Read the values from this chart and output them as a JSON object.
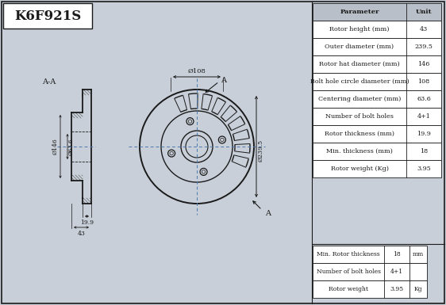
{
  "title": "K6F921S",
  "bg_color": "#c8cfd8",
  "line_color": "#1a1a1a",
  "params": [
    [
      "Parameter",
      "Unit"
    ],
    [
      "Rotor height (mm)",
      "43"
    ],
    [
      "Outer diameter (mm)",
      "239.5"
    ],
    [
      "Rotor hat diameter (mm)",
      "146"
    ],
    [
      "Bolt hole circle diameter (mm)",
      "108"
    ],
    [
      "Centering diameter (mm)",
      "63.6"
    ],
    [
      "Number of bolt holes",
      "4+1"
    ],
    [
      "Rotor thickness (mm)",
      "19.9"
    ],
    [
      "Min. thickness (mm)",
      "18"
    ],
    [
      "Rotor weight (Kg)",
      "3.95"
    ]
  ],
  "bottom_table": [
    [
      "Min. Rotor thickness",
      "18",
      "mm"
    ],
    [
      "Number of bolt holes",
      "4+1",
      ""
    ],
    [
      "Rotor weight",
      "3.95",
      "Kg"
    ]
  ],
  "centerline_color": "#4a7ab0",
  "hatch_color": "#555555"
}
